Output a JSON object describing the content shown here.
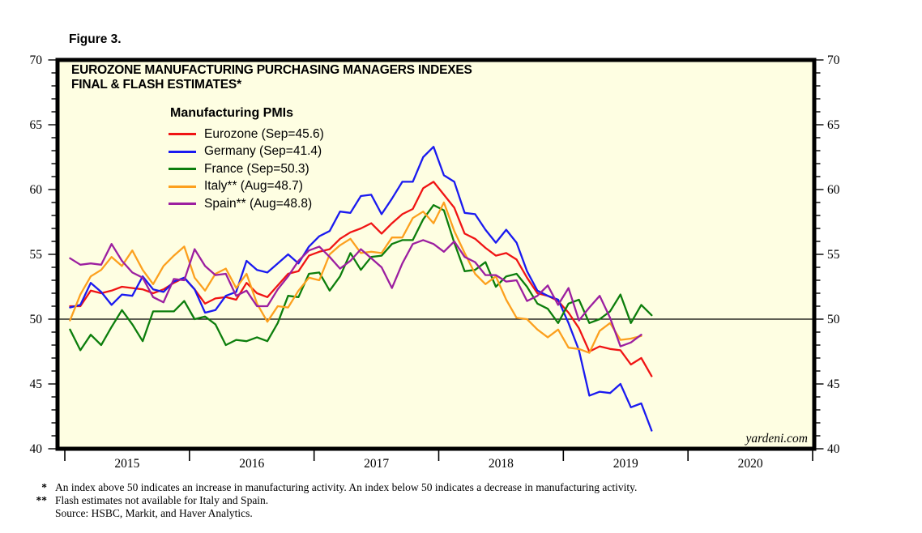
{
  "figure_label": "Figure 3.",
  "title_line1": "EUROZONE MANUFACTURING PURCHASING MANAGERS INDEXES",
  "title_line2": "FINAL & FLASH ESTIMATES*",
  "watermark": "yardeni.com",
  "legend": {
    "title": "Manufacturing PMIs",
    "items": [
      {
        "label": "Eurozone (Sep=45.6)"
      },
      {
        "label": "Germany (Sep=41.4)"
      },
      {
        "label": "France (Sep=50.3)"
      },
      {
        "label": "Italy** (Aug=48.7)"
      },
      {
        "label": "Spain** (Aug=48.8)"
      }
    ]
  },
  "footnotes": [
    {
      "marker": "*",
      "text": "An index above 50 indicates an increase in manufacturing activity. An index below 50 indicates a decrease in manufacturing activity."
    },
    {
      "marker": "**",
      "text": "Flash estimates not available for Italy and Spain."
    },
    {
      "marker": "",
      "text": "Source: HSBC, Markit, and Haver Analytics."
    }
  ],
  "chart_data": {
    "type": "line",
    "title": "EUROZONE MANUFACTURING PURCHASING MANAGERS INDEXES — FINAL & FLASH ESTIMATES*",
    "x_start_month": "2015-01",
    "x_frequency": "monthly",
    "x_axis_years": [
      "2015",
      "2016",
      "2017",
      "2018",
      "2019",
      "2020"
    ],
    "x_range": [
      2015.0,
      2021.0
    ],
    "ylim": [
      40,
      70
    ],
    "y_tick_major": 5,
    "y_tick_minor": 1,
    "reference_line": 50,
    "grid": "off",
    "legend_position": "top-left-inside",
    "plot_bg": "#FEFEE2",
    "axis_color": "#000000",
    "series": [
      {
        "name": "Eurozone",
        "color": "#F01414",
        "last_point": "Sep 2019 = 45.6",
        "values": [
          51.0,
          51.0,
          52.2,
          52.0,
          52.2,
          52.5,
          52.4,
          52.3,
          52.0,
          52.3,
          52.8,
          53.2,
          52.3,
          51.2,
          51.6,
          51.7,
          51.5,
          52.8,
          52.0,
          51.7,
          52.6,
          53.5,
          53.7,
          54.9,
          55.2,
          55.4,
          56.2,
          56.7,
          57.0,
          57.4,
          56.6,
          57.4,
          58.1,
          58.5,
          60.1,
          60.6,
          59.6,
          58.6,
          56.6,
          56.2,
          55.5,
          54.9,
          55.1,
          54.6,
          53.2,
          52.0,
          51.8,
          51.4,
          50.5,
          49.3,
          47.5,
          47.9,
          47.7,
          47.6,
          46.5,
          47.0,
          45.6
        ]
      },
      {
        "name": "Germany",
        "color": "#1A1AF0",
        "last_point": "Sep 2019 = 41.4",
        "values": [
          50.9,
          51.1,
          52.8,
          52.1,
          51.1,
          51.9,
          51.8,
          53.3,
          52.3,
          52.1,
          52.9,
          53.2,
          52.3,
          50.5,
          50.7,
          51.8,
          52.1,
          54.5,
          53.8,
          53.6,
          54.3,
          55.0,
          54.3,
          55.6,
          56.4,
          56.8,
          58.3,
          58.2,
          59.5,
          59.6,
          58.1,
          59.3,
          60.6,
          60.6,
          62.5,
          63.3,
          61.1,
          60.6,
          58.2,
          58.1,
          56.9,
          55.9,
          56.9,
          55.9,
          53.7,
          52.2,
          51.8,
          51.5,
          49.7,
          47.6,
          44.1,
          44.4,
          44.3,
          45.0,
          43.2,
          43.5,
          41.4
        ]
      },
      {
        "name": "France",
        "color": "#0C7E0C",
        "last_point": "Sep 2019 = 50.3",
        "values": [
          49.2,
          47.6,
          48.8,
          48.0,
          49.4,
          50.7,
          49.6,
          48.3,
          50.6,
          50.6,
          50.6,
          51.4,
          50.0,
          50.2,
          49.6,
          48.0,
          48.4,
          48.3,
          48.6,
          48.3,
          49.7,
          51.8,
          51.7,
          53.5,
          53.6,
          52.2,
          53.3,
          55.1,
          53.8,
          54.8,
          54.9,
          55.8,
          56.1,
          56.1,
          57.7,
          58.8,
          58.4,
          55.9,
          53.7,
          53.8,
          54.4,
          52.5,
          53.3,
          53.5,
          52.5,
          51.2,
          50.8,
          49.7,
          51.2,
          51.5,
          49.7,
          50.0,
          50.6,
          51.9,
          49.7,
          51.1,
          50.3
        ]
      },
      {
        "name": "Italy",
        "color": "#FCA01E",
        "last_point": "Aug 2019 = 48.7",
        "values": [
          49.9,
          51.9,
          53.3,
          53.8,
          54.8,
          54.1,
          55.3,
          53.8,
          52.7,
          54.1,
          54.9,
          55.6,
          53.2,
          52.2,
          53.5,
          53.9,
          52.4,
          53.5,
          51.2,
          49.8,
          51.0,
          50.9,
          52.2,
          53.2,
          53.0,
          55.0,
          55.7,
          56.2,
          55.1,
          55.2,
          55.1,
          56.3,
          56.3,
          57.8,
          58.3,
          57.4,
          59.0,
          56.8,
          55.1,
          53.5,
          52.7,
          53.3,
          51.5,
          50.1,
          50.0,
          49.2,
          48.6,
          49.2,
          47.8,
          47.7,
          47.4,
          49.1,
          49.7,
          48.4,
          48.5,
          48.7
        ]
      },
      {
        "name": "Spain",
        "color": "#9C1FA0",
        "last_point": "Aug 2019 = 48.8",
        "values": [
          54.7,
          54.2,
          54.3,
          54.2,
          55.8,
          54.5,
          53.6,
          53.2,
          51.7,
          51.3,
          53.1,
          53.0,
          55.4,
          54.1,
          53.4,
          53.5,
          51.8,
          52.2,
          51.0,
          51.0,
          52.3,
          53.3,
          54.5,
          55.3,
          55.6,
          54.8,
          53.9,
          54.5,
          55.4,
          54.7,
          54.0,
          52.4,
          54.3,
          55.8,
          56.1,
          55.8,
          55.2,
          56.0,
          54.8,
          54.4,
          53.4,
          53.4,
          52.9,
          53.0,
          51.4,
          51.8,
          52.6,
          51.1,
          52.4,
          49.9,
          50.9,
          51.8,
          50.1,
          47.9,
          48.2,
          48.8
        ]
      }
    ]
  }
}
